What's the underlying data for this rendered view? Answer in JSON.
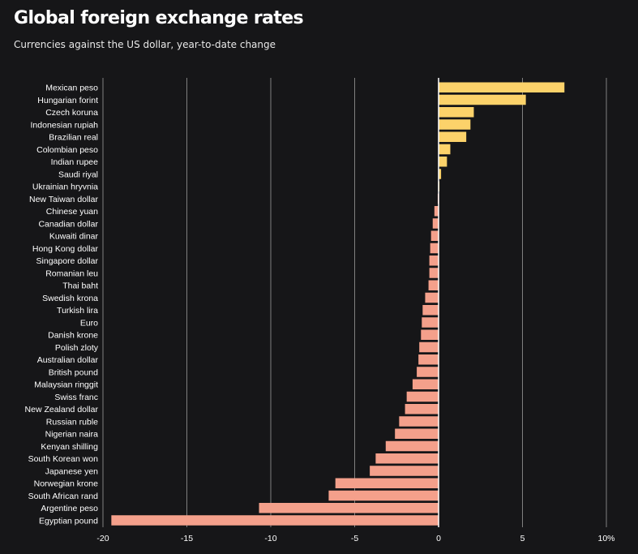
{
  "header": {
    "title": "Global foreign exchange rates",
    "subtitle": "Currencies against the US dollar, year-to-date change"
  },
  "colors": {
    "positive": "#fcd26a",
    "negative": "#f4a08b",
    "grid": "#808080",
    "zero": "#ffffff"
  },
  "chart_data": {
    "type": "bar",
    "orientation": "horizontal",
    "title": "Global foreign exchange rates",
    "subtitle": "Currencies against the US dollar, year-to-date change",
    "xlim": [
      -20,
      10
    ],
    "x_ticks": [
      -20,
      -15,
      -10,
      -5,
      0,
      5,
      10
    ],
    "x_tick_labels": [
      "-20",
      "-15",
      "-10",
      "-5",
      "0",
      "5",
      "10%"
    ],
    "grid": true,
    "categories": [
      "Mexican peso",
      "Hungarian forint",
      "Czech koruna",
      "Indonesian rupiah",
      "Brazilian real",
      "Colombian peso",
      "Indian rupee",
      "Saudi riyal",
      "Ukrainian hryvnia",
      "New Taiwan dollar",
      "Chinese yuan",
      "Canadian dollar",
      "Kuwaiti dinar",
      "Hong Kong dollar",
      "Singapore dollar",
      "Romanian leu",
      "Thai baht",
      "Swedish krona",
      "Turkish lira",
      "Euro",
      "Danish krone",
      "Polish zloty",
      "Australian dollar",
      "British pound",
      "Malaysian ringgit",
      "Swiss franc",
      "New Zealand dollar",
      "Russian ruble",
      "Nigerian naira",
      "Kenyan shilling",
      "South Korean won",
      "Japanese yen",
      "Norwegian krone",
      "South African rand",
      "Argentine peso",
      "Egyptian pound"
    ],
    "values": [
      7.5,
      5.2,
      2.1,
      1.9,
      1.65,
      0.7,
      0.5,
      0.15,
      0.05,
      -0.05,
      -0.25,
      -0.35,
      -0.45,
      -0.5,
      -0.55,
      -0.55,
      -0.6,
      -0.8,
      -0.95,
      -1.0,
      -1.05,
      -1.15,
      -1.2,
      -1.3,
      -1.55,
      -1.9,
      -2.0,
      -2.35,
      -2.6,
      -3.15,
      -3.75,
      -4.1,
      -6.15,
      -6.55,
      -10.7,
      -19.5
    ]
  }
}
